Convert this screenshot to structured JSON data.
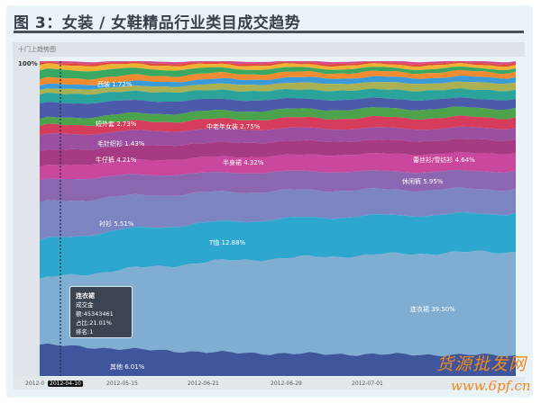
{
  "figure": {
    "title": "图 3：女装 / 女鞋精品行业类目成交趋势",
    "panel_title": "十门上趋势图",
    "y_top_label": "100%"
  },
  "tooltip": {
    "name": "连衣裙",
    "amount": "成交金额:45343461",
    "share": "占比:21.01%",
    "rank": "排名:1"
  },
  "watermark": {
    "line1": "货源批发网",
    "line2": "www.6pf.cn"
  },
  "chart_data": {
    "type": "area",
    "stacked": true,
    "normalized": true,
    "ylim": [
      0,
      100
    ],
    "x_ticks": [
      "2012-0",
      "2012-04-10",
      "2012-05-15",
      "2012-06-21",
      "2012-06-29",
      "2012-07-01"
    ],
    "highlighted_tick": "2012-04-10",
    "grid": false,
    "series": [
      {
        "name": "其他",
        "label": "其他 6.01%",
        "color": "#3f559c",
        "values": [
          10.0,
          8.5,
          7.4,
          7.0,
          6.8,
          6.6
        ]
      },
      {
        "name": "连衣裙",
        "label": "连衣裙 39.50%",
        "color": "#80aed2",
        "values": [
          20.9,
          26.0,
          29.5,
          31.0,
          32.2,
          32.9
        ]
      },
      {
        "name": "T恤",
        "label": "T恤 12.88%",
        "color": "#2ea7cf",
        "values": [
          12.3,
          12.8,
          12.4,
          12.6,
          12.2,
          12.3
        ]
      },
      {
        "name": "衬衫",
        "label": "衬衫 5.51%",
        "color": "#7c85c2",
        "values": [
          12.0,
          10.5,
          9.4,
          8.6,
          8.0,
          7.7
        ]
      },
      {
        "name": "休闲裤",
        "label": "休闲裤 5.95%",
        "color": "#8d66b1",
        "values": [
          7.1,
          6.6,
          6.2,
          6.0,
          5.8,
          5.7
        ]
      },
      {
        "name": "蕾丝衫/雪纺衫",
        "label": "蕾丝衫/雪纺衫 4.64%",
        "color": "#c9479c",
        "values": [
          4.3,
          4.7,
          5.0,
          5.3,
          5.6,
          5.7
        ]
      },
      {
        "name": "半身裙",
        "label": "半身裙 4.32%",
        "color": "#a73b83",
        "values": [
          4.9,
          4.8,
          4.6,
          4.4,
          4.3,
          4.3
        ]
      },
      {
        "name": "牛仔裤",
        "label": "牛仔裤 4.21%",
        "color": "#9a4fa0",
        "values": [
          5.1,
          4.6,
          4.3,
          4.0,
          3.8,
          3.7
        ]
      },
      {
        "name": "毛针织衫",
        "label": "毛针织衫 1.43%",
        "color": "#d63d5c",
        "values": [
          2.9,
          3.0,
          3.1,
          3.3,
          3.4,
          3.4
        ]
      },
      {
        "name": "中老年女装",
        "label": "中老年女装 2.75%",
        "color": "#4ca34c",
        "values": [
          2.3,
          2.5,
          2.7,
          2.8,
          2.9,
          2.9
        ]
      },
      {
        "name": "短外套",
        "label": "短外套 2.73%",
        "color": "#4b5ba9",
        "values": [
          4.9,
          4.2,
          3.6,
          3.2,
          3.0,
          2.9
        ]
      },
      {
        "color": "#2aa39a",
        "values": [
          2.9,
          2.9,
          2.9,
          2.9,
          2.9,
          2.9
        ]
      },
      {
        "color": "#a9b152",
        "values": [
          1.4,
          1.7,
          2.0,
          2.2,
          2.3,
          2.3
        ]
      },
      {
        "color": "#3b9bd9",
        "values": [
          1.4,
          1.5,
          1.6,
          1.7,
          1.7,
          1.7
        ]
      },
      {
        "color": "#f08b32",
        "values": [
          2.0,
          1.9,
          1.8,
          1.7,
          1.7,
          1.7
        ]
      },
      {
        "name": "西装",
        "label": "西装 1.72%",
        "color": "#3aa862",
        "values": [
          2.9,
          2.2,
          1.6,
          1.3,
          1.2,
          1.1
        ]
      },
      {
        "color": "#f1b233",
        "values": [
          1.7,
          1.4,
          1.2,
          1.1,
          1.1,
          1.1
        ]
      },
      {
        "color": "#e24b3b",
        "values": [
          0.6,
          0.6,
          0.6,
          0.6,
          0.6,
          0.6
        ]
      },
      {
        "color": "#d24c8c",
        "values": [
          0.6,
          0.6,
          0.6,
          0.6,
          0.6,
          0.6
        ]
      }
    ]
  }
}
